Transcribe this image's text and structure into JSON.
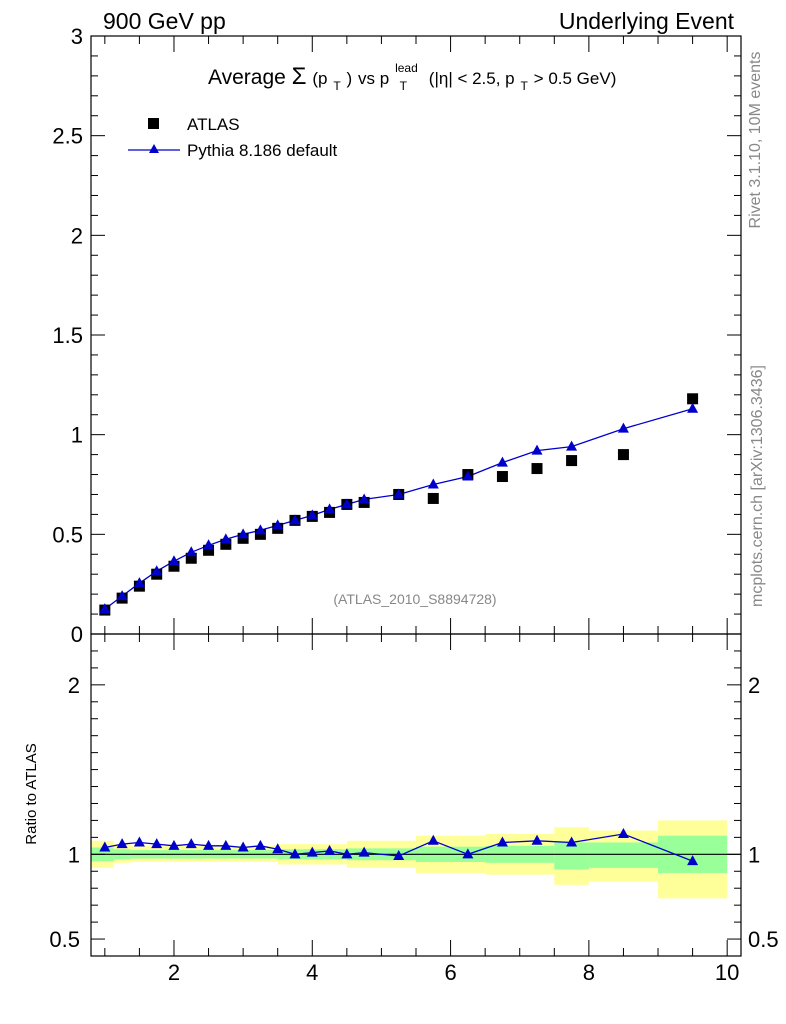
{
  "header": {
    "left": "900 GeV pp",
    "right": "Underlying Event"
  },
  "side_text": {
    "rivet": "Rivet 3.1.10,  10M events",
    "mcplots": "mcplots.cern.ch [arXiv:1306.3436]"
  },
  "colors": {
    "mc": "#0000cc",
    "data": "#000000",
    "band_inner": "#99ff99",
    "band_outer": "#ffff99"
  },
  "chart_data": [
    {
      "type": "scatter",
      "title": {
        "prefix": "Average ",
        "sigma": "Σ",
        "paren_open": "(p",
        "sub_t": "T",
        "paren_close": ")",
        "vs": " vs p",
        "sup_lead": "lead",
        "sub_t2": "T",
        "cut_open": " (|η| < 2.5, p",
        "sub_t3": "T",
        "cut_close": " > 0.5 GeV)"
      },
      "watermark": "(ATLAS_2010_S8894728)",
      "xlim": [
        0.8,
        10.2
      ],
      "ylim": [
        0,
        3
      ],
      "y_ticks": [
        0,
        0.5,
        1,
        1.5,
        2,
        2.5,
        3
      ],
      "y_tick_labels": [
        "0",
        "0.5",
        "1",
        "1.5",
        "2",
        "2.5",
        "3"
      ],
      "legend_position": "top-left",
      "series": [
        {
          "name": "ATLAS",
          "marker": "square",
          "x": [
            1.0,
            1.25,
            1.5,
            1.75,
            2.0,
            2.25,
            2.5,
            2.75,
            3.0,
            3.25,
            3.5,
            3.75,
            4.0,
            4.25,
            4.5,
            4.75,
            5.25,
            5.75,
            6.25,
            6.75,
            7.25,
            7.75,
            8.5,
            9.5
          ],
          "y": [
            0.12,
            0.18,
            0.24,
            0.3,
            0.34,
            0.38,
            0.42,
            0.45,
            0.48,
            0.5,
            0.53,
            0.57,
            0.59,
            0.61,
            0.65,
            0.66,
            0.7,
            0.68,
            0.8,
            0.79,
            0.83,
            0.87,
            0.9,
            1.18
          ]
        },
        {
          "name": "Pythia 8.186 default",
          "marker": "triangle",
          "x": [
            1.0,
            1.25,
            1.5,
            1.75,
            2.0,
            2.25,
            2.5,
            2.75,
            3.0,
            3.25,
            3.5,
            3.75,
            4.0,
            4.25,
            4.5,
            4.75,
            5.25,
            5.75,
            6.25,
            6.75,
            7.25,
            7.75,
            8.5,
            9.5
          ],
          "y": [
            0.125,
            0.19,
            0.255,
            0.315,
            0.365,
            0.41,
            0.445,
            0.475,
            0.5,
            0.52,
            0.545,
            0.57,
            0.595,
            0.625,
            0.65,
            0.675,
            0.7,
            0.75,
            0.79,
            0.86,
            0.92,
            0.94,
            1.03,
            1.13
          ]
        }
      ]
    },
    {
      "type": "scatter",
      "ylabel": "Ratio to ATLAS",
      "xlim": [
        0.8,
        10.2
      ],
      "ylim": [
        0.4,
        2.3
      ],
      "y_ticks": [
        0.5,
        1,
        2
      ],
      "y_tick_labels": [
        "0.5",
        "1",
        "2"
      ],
      "x_ticks": [
        2,
        4,
        6,
        8,
        10
      ],
      "x_tick_labels": [
        "2",
        "4",
        "6",
        "8",
        "10"
      ],
      "bands": [
        {
          "x0": 0.8,
          "x1": 1.125,
          "inner": [
            0.96,
            1.04
          ],
          "outer": [
            0.92,
            1.08
          ]
        },
        {
          "x0": 1.125,
          "x1": 1.375,
          "inner": [
            0.97,
            1.03
          ],
          "outer": [
            0.95,
            1.06
          ]
        },
        {
          "x0": 1.375,
          "x1": 3.5,
          "inner": [
            0.975,
            1.025
          ],
          "outer": [
            0.955,
            1.05
          ]
        },
        {
          "x0": 3.5,
          "x1": 4.5,
          "inner": [
            0.97,
            1.03
          ],
          "outer": [
            0.94,
            1.06
          ]
        },
        {
          "x0": 4.5,
          "x1": 5.5,
          "inner": [
            0.965,
            1.035
          ],
          "outer": [
            0.92,
            1.08
          ]
        },
        {
          "x0": 5.5,
          "x1": 6.5,
          "inner": [
            0.955,
            1.045
          ],
          "outer": [
            0.89,
            1.11
          ]
        },
        {
          "x0": 6.5,
          "x1": 7.5,
          "inner": [
            0.95,
            1.05
          ],
          "outer": [
            0.88,
            1.12
          ]
        },
        {
          "x0": 7.5,
          "x1": 8.0,
          "inner": [
            0.91,
            1.07
          ],
          "outer": [
            0.82,
            1.16
          ]
        },
        {
          "x0": 8.0,
          "x1": 9.0,
          "inner": [
            0.92,
            1.07
          ],
          "outer": [
            0.84,
            1.14
          ]
        },
        {
          "x0": 9.0,
          "x1": 10.0,
          "inner": [
            0.89,
            1.11
          ],
          "outer": [
            0.74,
            1.2
          ]
        }
      ],
      "series": [
        {
          "name": "Pythia 8.186 default",
          "marker": "triangle",
          "x": [
            1.0,
            1.25,
            1.5,
            1.75,
            2.0,
            2.25,
            2.5,
            2.75,
            3.0,
            3.25,
            3.5,
            3.75,
            4.0,
            4.25,
            4.5,
            4.75,
            5.25,
            5.75,
            6.25,
            6.75,
            7.25,
            7.75,
            8.5,
            9.5
          ],
          "y": [
            1.04,
            1.06,
            1.07,
            1.06,
            1.05,
            1.06,
            1.05,
            1.05,
            1.04,
            1.05,
            1.03,
            1.0,
            1.01,
            1.02,
            1.0,
            1.01,
            0.99,
            1.08,
            1.0,
            1.07,
            1.08,
            1.07,
            1.12,
            0.96
          ]
        }
      ]
    }
  ]
}
